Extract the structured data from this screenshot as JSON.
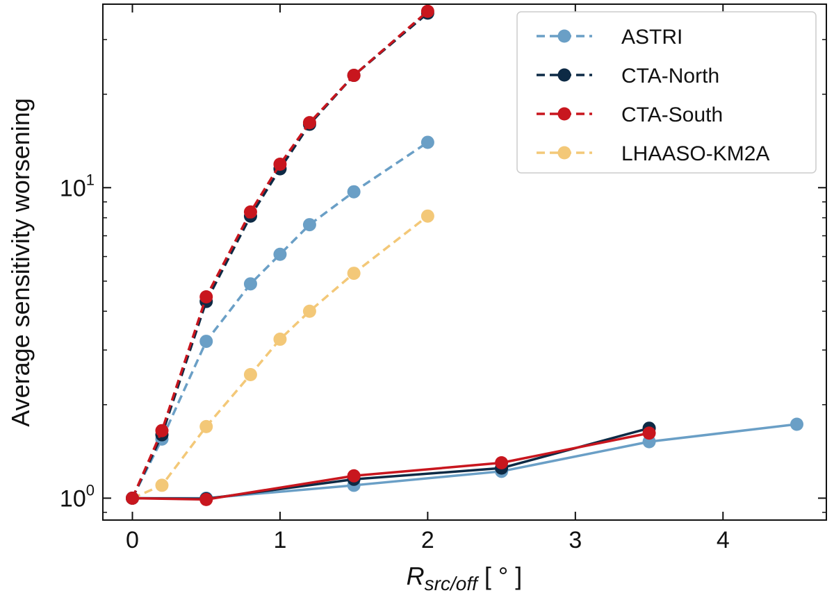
{
  "chart_data": {
    "type": "line",
    "yscale": "log",
    "xlim": [
      -0.2,
      4.7
    ],
    "ylim": [
      0.85,
      39
    ],
    "xticks": [
      {
        "value": 0,
        "label": "0"
      },
      {
        "value": 1,
        "label": "1"
      },
      {
        "value": 2,
        "label": "2"
      },
      {
        "value": 3,
        "label": "3"
      },
      {
        "value": 4,
        "label": "4"
      }
    ],
    "yticks_major": [
      {
        "value": 1,
        "base": "10",
        "exp": "0"
      },
      {
        "value": 10,
        "base": "10",
        "exp": "1"
      }
    ],
    "yticks_minor": [
      0.9,
      2,
      3,
      4,
      5,
      6,
      7,
      8,
      9,
      20,
      30
    ],
    "ylabel": "Average sensitivity worsening",
    "xlabel": {
      "main": "R",
      "sub": "src/off",
      "units": "[ ° ]"
    },
    "legend": {
      "position": "top-right"
    },
    "series": [
      {
        "name": "ASTRI",
        "color": "#6A9FC6",
        "linestyle": "dashed",
        "x": [
          0,
          0.2,
          0.5,
          0.8,
          1.0,
          1.2,
          1.5,
          2.0
        ],
        "y": [
          1.0,
          1.55,
          3.2,
          4.9,
          6.1,
          7.6,
          9.7,
          14.0
        ]
      },
      {
        "name": "CTA-North",
        "color": "#0D2A45",
        "linestyle": "dashed",
        "x": [
          0,
          0.2,
          0.5,
          0.8,
          1.0,
          1.2,
          1.5,
          2.0
        ],
        "y": [
          1.0,
          1.6,
          4.3,
          8.1,
          11.5,
          16.0,
          23.0,
          36.5
        ]
      },
      {
        "name": "CTA-South",
        "color": "#C8161E",
        "linestyle": "dashed",
        "x": [
          0,
          0.2,
          0.5,
          0.8,
          1.0,
          1.2,
          1.5,
          2.0
        ],
        "y": [
          1.0,
          1.65,
          4.45,
          8.35,
          11.9,
          16.2,
          23.0,
          37.0
        ]
      },
      {
        "name": "LHAASO-KM2A",
        "color": "#F3C878",
        "linestyle": "dashed",
        "x": [
          0,
          0.2,
          0.5,
          0.8,
          1.0,
          1.2,
          1.5,
          2.0
        ],
        "y": [
          1.0,
          1.1,
          1.7,
          2.5,
          3.25,
          4.0,
          5.3,
          8.1
        ]
      },
      {
        "name": "ASTRI (solid)",
        "color": "#6A9FC6",
        "linestyle": "solid",
        "legend": false,
        "x": [
          0,
          0.5,
          1.5,
          2.5,
          3.5,
          4.5
        ],
        "y": [
          1.0,
          1.0,
          1.1,
          1.22,
          1.52,
          1.73
        ]
      },
      {
        "name": "CTA-North (solid)",
        "color": "#0D2A45",
        "linestyle": "solid",
        "legend": false,
        "x": [
          0,
          0.5,
          1.5,
          2.5,
          3.5
        ],
        "y": [
          1.0,
          0.995,
          1.15,
          1.25,
          1.68
        ]
      },
      {
        "name": "CTA-South (solid)",
        "color": "#C8161E",
        "linestyle": "solid",
        "legend": false,
        "x": [
          0,
          0.5,
          1.5,
          2.5,
          3.5
        ],
        "y": [
          1.0,
          0.99,
          1.18,
          1.3,
          1.62
        ]
      }
    ]
  }
}
